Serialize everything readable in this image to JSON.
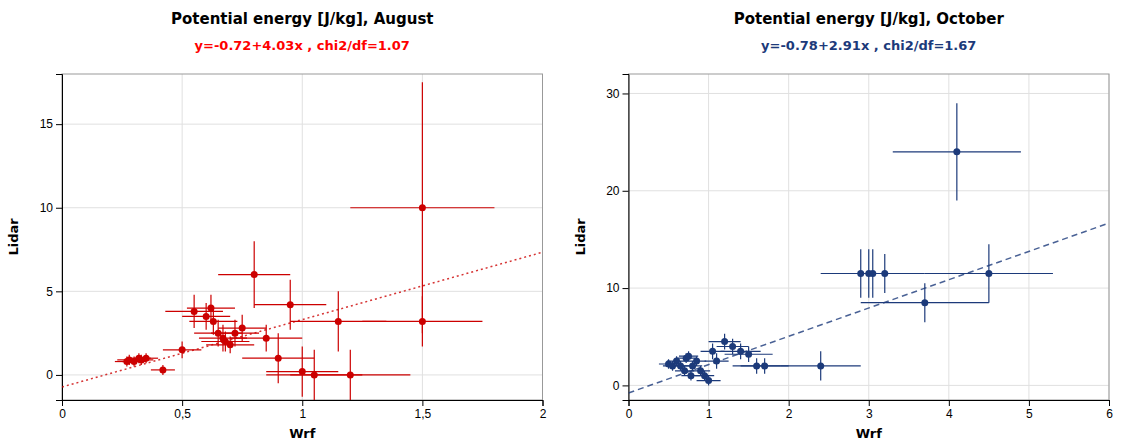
{
  "chart_data": [
    {
      "type": "scatter",
      "title": "Potential energy [J/kg], August",
      "xlabel": "Wrf",
      "ylabel": "Lidar",
      "annotations": [
        {
          "text": "y=-0.72+4.03x ,  chi2/df=1.07",
          "color": "#ff0000"
        }
      ],
      "xlim": [
        0,
        2
      ],
      "ylim": [
        -1.5,
        18
      ],
      "xticks": [
        0,
        {
          "value": 0.5,
          "label": "0,5"
        },
        1,
        {
          "value": 1.5,
          "label": "1,5"
        },
        2
      ],
      "yticks": [
        0,
        5,
        10,
        15
      ],
      "grid": true,
      "series": [
        {
          "type": "scatter",
          "color": "#cc0000",
          "marker": "circle",
          "x": [
            0.27,
            0.28,
            0.3,
            0.32,
            0.33,
            0.35,
            0.42,
            0.5,
            0.55,
            0.6,
            0.62,
            0.63,
            0.65,
            0.67,
            0.68,
            0.7,
            0.72,
            0.75,
            0.8,
            0.85,
            0.9,
            0.95,
            1.0,
            1.05,
            1.15,
            1.2,
            1.5,
            1.5
          ],
          "values": [
            0.8,
            0.9,
            0.8,
            1.0,
            0.9,
            1.0,
            0.3,
            1.5,
            3.8,
            3.5,
            4.0,
            3.2,
            2.5,
            2.2,
            2.0,
            1.8,
            2.5,
            2.8,
            6.0,
            2.2,
            1.0,
            4.2,
            0.2,
            0.0,
            3.2,
            0.0,
            10.0,
            3.2
          ],
          "xerr": [
            0.05,
            0.05,
            0.05,
            0.05,
            0.05,
            0.05,
            0.05,
            0.08,
            0.12,
            0.1,
            0.1,
            0.1,
            0.1,
            0.1,
            0.1,
            0.1,
            0.1,
            0.1,
            0.15,
            0.15,
            0.15,
            0.15,
            0.15,
            0.2,
            0.2,
            0.25,
            0.3,
            0.25
          ],
          "yerr": [
            0.3,
            0.3,
            0.3,
            0.3,
            0.3,
            0.3,
            0.3,
            0.5,
            1.0,
            0.8,
            0.8,
            0.8,
            0.8,
            0.8,
            0.6,
            0.5,
            0.8,
            0.8,
            2.0,
            0.8,
            1.5,
            1.5,
            1.5,
            1.5,
            1.8,
            1.5,
            7.5,
            1.5
          ]
        },
        {
          "type": "line",
          "color": "#cc0000",
          "line_style": "dotted",
          "x": [
            0,
            2
          ],
          "values": [
            -0.72,
            7.34
          ]
        }
      ]
    },
    {
      "type": "scatter",
      "title": "Potential energy [J/kg], October",
      "xlabel": "Wrf",
      "ylabel": "Lidar",
      "annotations": [
        {
          "text": "y=-0.78+2.91x ,  chi2/df=1.67",
          "color": "#1c3a7a"
        }
      ],
      "xlim": [
        0,
        6
      ],
      "ylim": [
        -1.5,
        32
      ],
      "xticks": [
        0,
        1,
        2,
        3,
        4,
        5,
        6
      ],
      "yticks": [
        0,
        10,
        20,
        30
      ],
      "grid": true,
      "series": [
        {
          "type": "scatter",
          "color": "#1c3a7a",
          "marker": "circle",
          "x": [
            0.5,
            0.55,
            0.6,
            0.65,
            0.7,
            0.72,
            0.75,
            0.78,
            0.8,
            0.85,
            0.9,
            0.95,
            1.0,
            1.05,
            1.1,
            1.2,
            1.3,
            1.4,
            1.5,
            1.6,
            1.7,
            2.4,
            2.9,
            3.0,
            3.05,
            3.2,
            3.7,
            4.1,
            4.5
          ],
          "values": [
            2.2,
            2.0,
            2.5,
            2.0,
            1.5,
            2.8,
            3.0,
            1.0,
            2.0,
            2.5,
            1.5,
            1.0,
            0.5,
            3.5,
            2.5,
            4.5,
            4.0,
            3.5,
            3.2,
            2.0,
            2.0,
            2.0,
            11.5,
            11.5,
            11.5,
            11.5,
            8.5,
            24.0,
            11.5
          ],
          "xerr": [
            0.12,
            0.12,
            0.12,
            0.12,
            0.12,
            0.12,
            0.12,
            0.12,
            0.12,
            0.12,
            0.12,
            0.12,
            0.15,
            0.15,
            0.15,
            0.2,
            0.2,
            0.25,
            0.3,
            0.3,
            0.3,
            0.5,
            0.5,
            0.5,
            0.5,
            0.5,
            0.8,
            0.8,
            0.8
          ],
          "yerr": [
            0.5,
            0.5,
            0.5,
            0.5,
            0.5,
            0.5,
            0.5,
            0.5,
            0.5,
            0.5,
            0.5,
            0.5,
            0.5,
            0.8,
            0.8,
            0.8,
            0.8,
            0.8,
            0.8,
            0.8,
            0.8,
            1.5,
            2.5,
            2.5,
            2.5,
            2.0,
            2.0,
            5.0,
            3.0
          ]
        },
        {
          "type": "line",
          "color": "#1c3a7a",
          "line_style": "dashed",
          "x": [
            0,
            6
          ],
          "values": [
            -0.78,
            16.68
          ]
        }
      ]
    }
  ]
}
